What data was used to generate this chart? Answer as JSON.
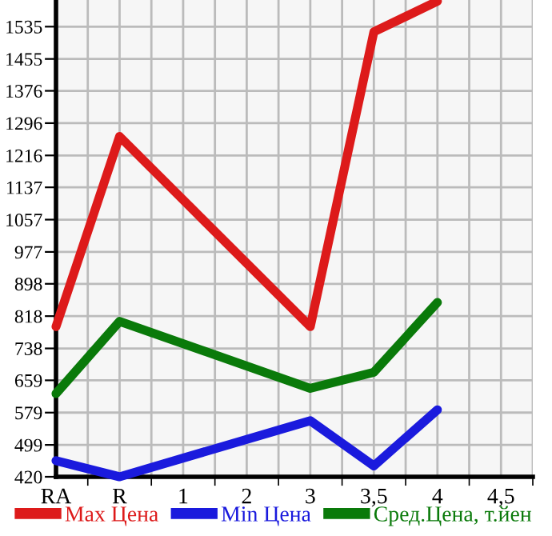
{
  "chart_data": {
    "type": "line",
    "categories": [
      "RA",
      "R",
      "1",
      "2",
      "3",
      "3,5",
      "4",
      "4,5"
    ],
    "series": [
      {
        "name": "Max Цена",
        "color": "#dd1a1a",
        "values": [
          792,
          1263,
          null,
          null,
          792,
          1522,
          1598,
          null
        ]
      },
      {
        "name": "Min Цена",
        "color": "#1a1add",
        "values": [
          460,
          420,
          null,
          null,
          559,
          447,
          586,
          null
        ]
      },
      {
        "name": "Сред.Цена, т.йен",
        "color": "#0a7a0a",
        "values": [
          626,
          805,
          null,
          null,
          639,
          679,
          852,
          null
        ]
      }
    ],
    "ylim": [
      420,
      1601
    ],
    "yticks": [
      420,
      499,
      579,
      659,
      738,
      818,
      898,
      977,
      1057,
      1137,
      1216,
      1296,
      1376,
      1455,
      1535
    ],
    "grid": true,
    "legend": "bottom",
    "marker": "none",
    "line_style": "solid"
  }
}
